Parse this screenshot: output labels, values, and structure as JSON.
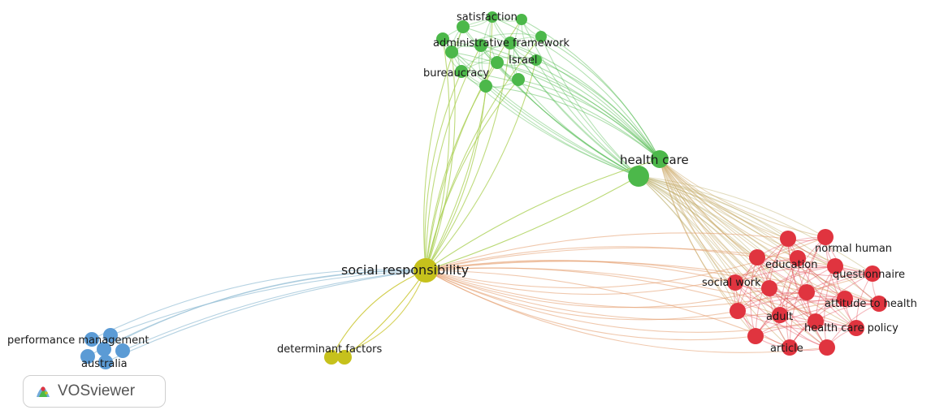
{
  "colors": {
    "red": "#e0343f",
    "green": "#4cb84a",
    "blue": "#5b9bd5",
    "yellow": "#c6c11c"
  },
  "labels": {
    "satisfaction": "satisfaction",
    "administrative_framework": "administrative framework",
    "israel": "Israel",
    "bureaucracy": "bureaucracy",
    "health_care": "health care",
    "social_responsibility": "social responsibility",
    "normal_human": "normal human",
    "education": "education",
    "questionnaire": "questionnaire",
    "social_work": "social work",
    "attitude_to_health": "attitude to health",
    "adult": "adult",
    "health_care_policy": "health care policy",
    "article": "article",
    "performance_management": "performance management",
    "australia": "australia",
    "determinant_factors": "determinant factors"
  },
  "logo": {
    "text": "VOSviewer",
    "icon": "vosviewer-logo-icon"
  }
}
